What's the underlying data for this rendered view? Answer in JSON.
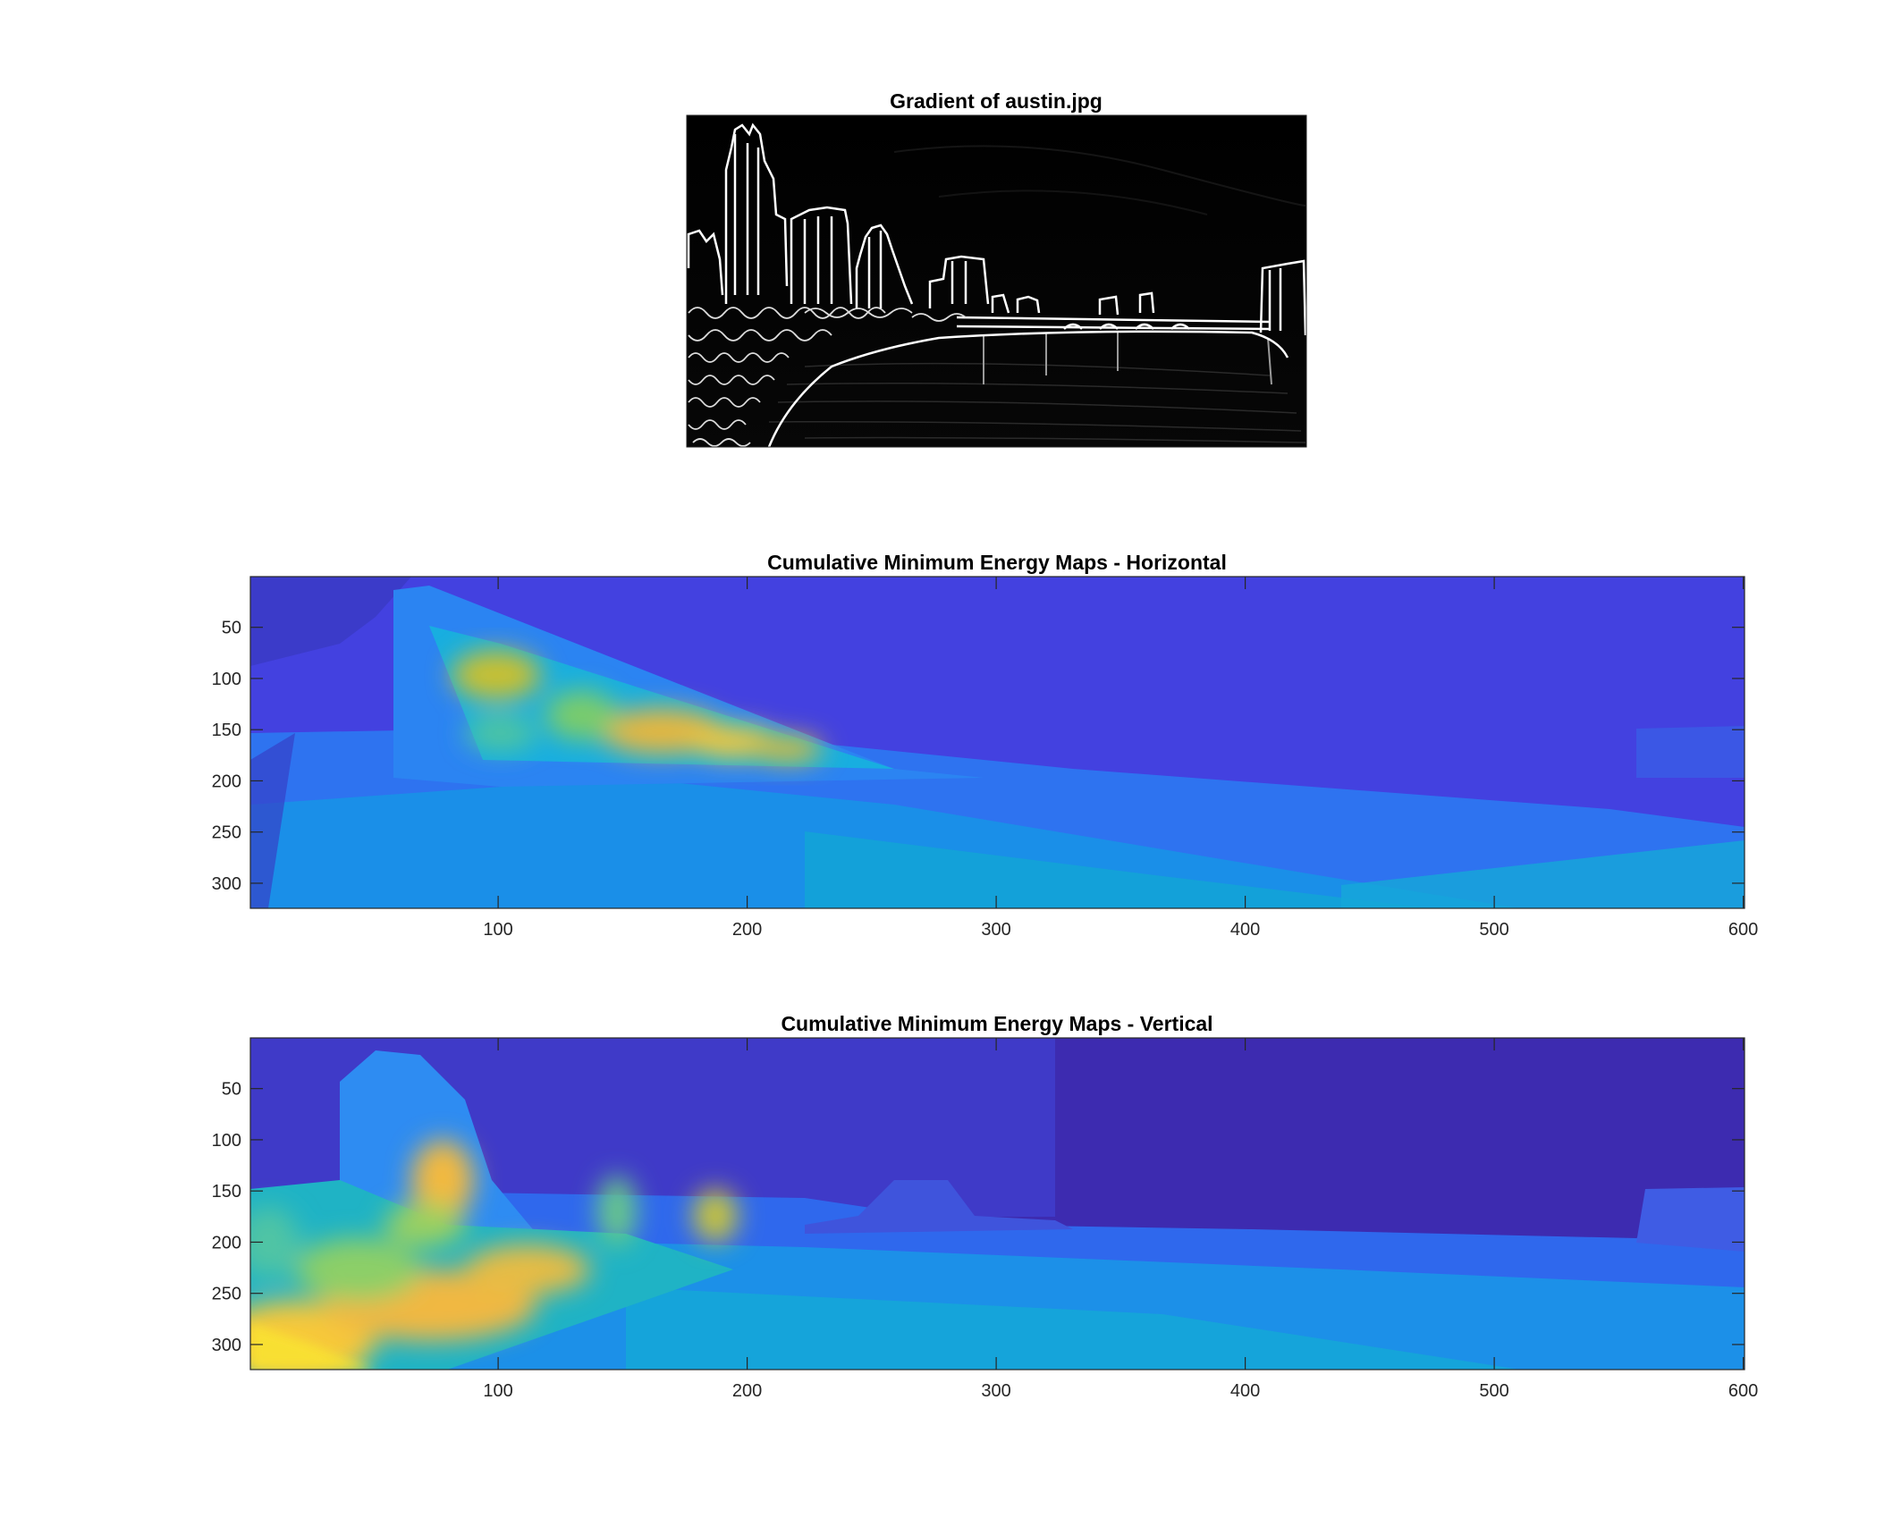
{
  "chart_data": [
    {
      "type": "image",
      "title": "Gradient of austin.jpg",
      "colormap": "gray",
      "axes_visible": false,
      "content": "edge-detected gradient magnitude of the Austin skyline over the river"
    },
    {
      "type": "heatmap",
      "title": "Cumulative Minimum Energy Maps - Horizontal",
      "colormap": "parula",
      "x_ticks": [
        100,
        200,
        300,
        400,
        500,
        600
      ],
      "y_ticks": [
        50,
        100,
        150,
        200,
        250,
        300
      ],
      "xlim": [
        1,
        600
      ],
      "ylim": [
        1,
        324
      ],
      "y_direction": "reverse",
      "hotspots": [
        {
          "x": 110,
          "y": 110,
          "level": 0.8
        },
        {
          "x": 200,
          "y": 158,
          "level": 1.0
        },
        {
          "x": 170,
          "y": 150,
          "level": 0.9
        }
      ]
    },
    {
      "type": "heatmap",
      "title": "Cumulative Minimum Energy Maps - Vertical",
      "colormap": "parula",
      "x_ticks": [
        100,
        200,
        300,
        400,
        500,
        600
      ],
      "y_ticks": [
        50,
        100,
        150,
        200,
        250,
        300
      ],
      "xlim": [
        1,
        600
      ],
      "ylim": [
        1,
        324
      ],
      "y_direction": "reverse",
      "hotspots": [
        {
          "x": 78,
          "y": 140,
          "level": 0.95
        },
        {
          "x": 10,
          "y": 315,
          "level": 1.0
        },
        {
          "x": 190,
          "y": 180,
          "level": 0.8
        },
        {
          "x": 150,
          "y": 165,
          "level": 0.7
        }
      ]
    }
  ]
}
